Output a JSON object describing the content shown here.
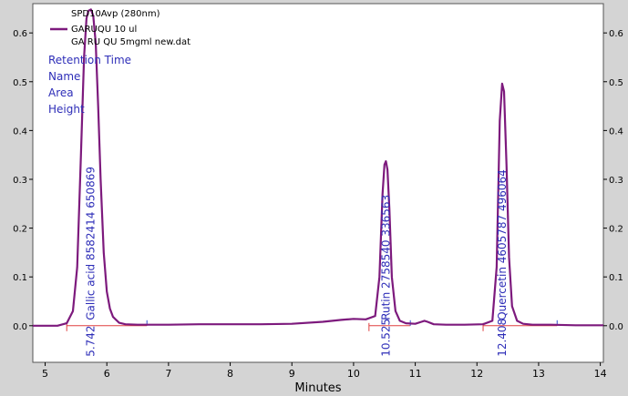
{
  "chart_data": {
    "type": "line",
    "xlabel": "Minutes",
    "ylabel": "",
    "xlim": [
      4.8,
      14.05
    ],
    "ylim": [
      -0.075,
      0.66
    ],
    "x_ticks": [
      "5",
      "6",
      "7",
      "8",
      "9",
      "10",
      "11",
      "12",
      "13",
      "14"
    ],
    "y_ticks": [
      "0.0",
      "0.1",
      "0.2",
      "0.3",
      "0.4",
      "0.5",
      "0.6"
    ],
    "legend": {
      "detector": "SPD10Avp (280nm)",
      "series_name": "GARUQU 10 ul",
      "file": "GA RU QU 5mgml new.dat"
    },
    "label_key": [
      "Retention Time",
      "Name",
      "Area",
      "Height"
    ],
    "series_color": "#7d1a7d",
    "label_color": "#2e2eb8",
    "peaks": [
      {
        "retention_time": "5.742",
        "name": "Gallic acid",
        "area": "8582414",
        "height": "650869",
        "apex_x": 5.742,
        "apex_y": 0.648
      },
      {
        "retention_time": "10.525",
        "name": "Rutin",
        "area": "2758540",
        "height": "336563",
        "apex_x": 10.525,
        "apex_y": 0.337
      },
      {
        "retention_time": "12.408",
        "name": "Quercetin",
        "area": "4605787",
        "height": "496064",
        "apex_x": 12.408,
        "apex_y": 0.496
      }
    ],
    "series": [
      {
        "name": "GARUQU 10 ul",
        "x": [
          4.8,
          5.0,
          5.2,
          5.35,
          5.45,
          5.52,
          5.58,
          5.63,
          5.67,
          5.7,
          5.742,
          5.78,
          5.82,
          5.86,
          5.9,
          5.95,
          6.0,
          6.05,
          6.1,
          6.2,
          6.3,
          6.5,
          7.0,
          7.5,
          8.0,
          8.5,
          9.0,
          9.5,
          9.8,
          10.0,
          10.2,
          10.35,
          10.42,
          10.47,
          10.5,
          10.525,
          10.55,
          10.58,
          10.62,
          10.68,
          10.75,
          10.85,
          11.0,
          11.1,
          11.15,
          11.2,
          11.3,
          11.5,
          11.8,
          12.1,
          12.25,
          12.32,
          12.37,
          12.408,
          12.44,
          12.48,
          12.52,
          12.57,
          12.65,
          12.75,
          12.9,
          13.2,
          13.6,
          14.05
        ],
        "y": [
          0.0,
          0.0,
          0.0,
          0.005,
          0.03,
          0.12,
          0.35,
          0.55,
          0.63,
          0.645,
          0.648,
          0.635,
          0.58,
          0.45,
          0.3,
          0.15,
          0.07,
          0.035,
          0.018,
          0.006,
          0.003,
          0.002,
          0.002,
          0.003,
          0.003,
          0.003,
          0.004,
          0.008,
          0.012,
          0.014,
          0.013,
          0.02,
          0.1,
          0.27,
          0.33,
          0.337,
          0.32,
          0.24,
          0.1,
          0.03,
          0.01,
          0.005,
          0.004,
          0.008,
          0.01,
          0.008,
          0.003,
          0.002,
          0.002,
          0.003,
          0.01,
          0.12,
          0.42,
          0.496,
          0.48,
          0.33,
          0.14,
          0.04,
          0.01,
          0.004,
          0.002,
          0.002,
          0.001,
          0.001
        ]
      }
    ],
    "baseline_segments": [
      [
        5.35,
        6.65
      ],
      [
        10.25,
        10.92
      ],
      [
        12.1,
        13.3
      ]
    ]
  }
}
